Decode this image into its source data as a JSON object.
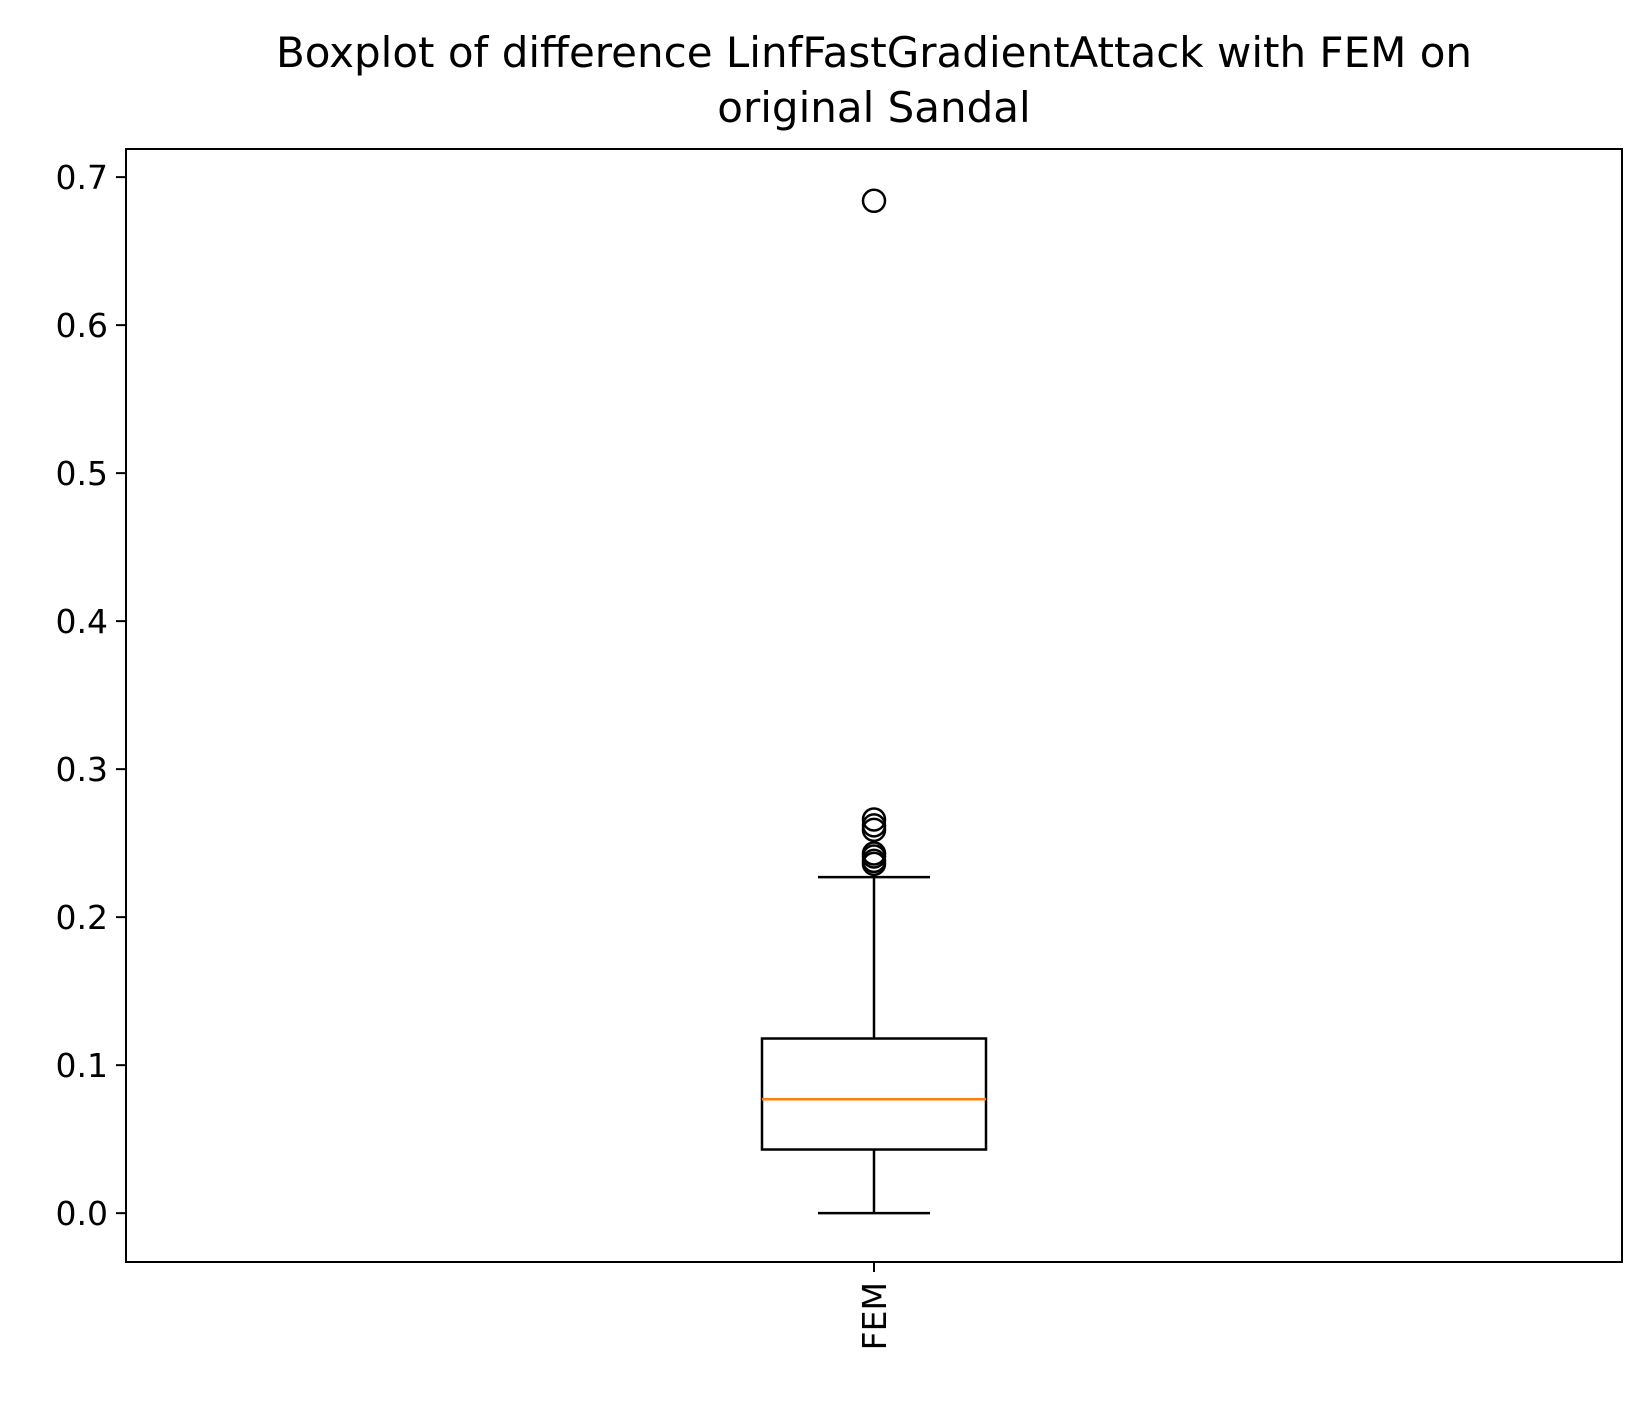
{
  "chart_data": {
    "type": "boxplot",
    "title_lines": [
      "Boxplot of difference LinfFastGradientAttack with FEM on",
      "original Sandal"
    ],
    "xlabel": "",
    "ylabel": "",
    "categories": [
      "FEM"
    ],
    "ylim": [
      -0.033,
      0.719
    ],
    "yticks": [
      0.0,
      0.1,
      0.2,
      0.3,
      0.4,
      0.5,
      0.6,
      0.7
    ],
    "ytick_labels": [
      "0.0",
      "0.1",
      "0.2",
      "0.3",
      "0.4",
      "0.5",
      "0.6",
      "0.7"
    ],
    "grid": false,
    "boxes": [
      {
        "name": "FEM",
        "whisker_low": 0.0,
        "q1": 0.043,
        "median": 0.077,
        "q3": 0.118,
        "whisker_high": 0.227,
        "outliers": [
          0.236,
          0.238,
          0.241,
          0.243,
          0.259,
          0.262,
          0.266,
          0.684
        ]
      }
    ],
    "colors": {
      "median": "#ff7f0e",
      "box": "#000000",
      "axes": "#000000"
    }
  }
}
